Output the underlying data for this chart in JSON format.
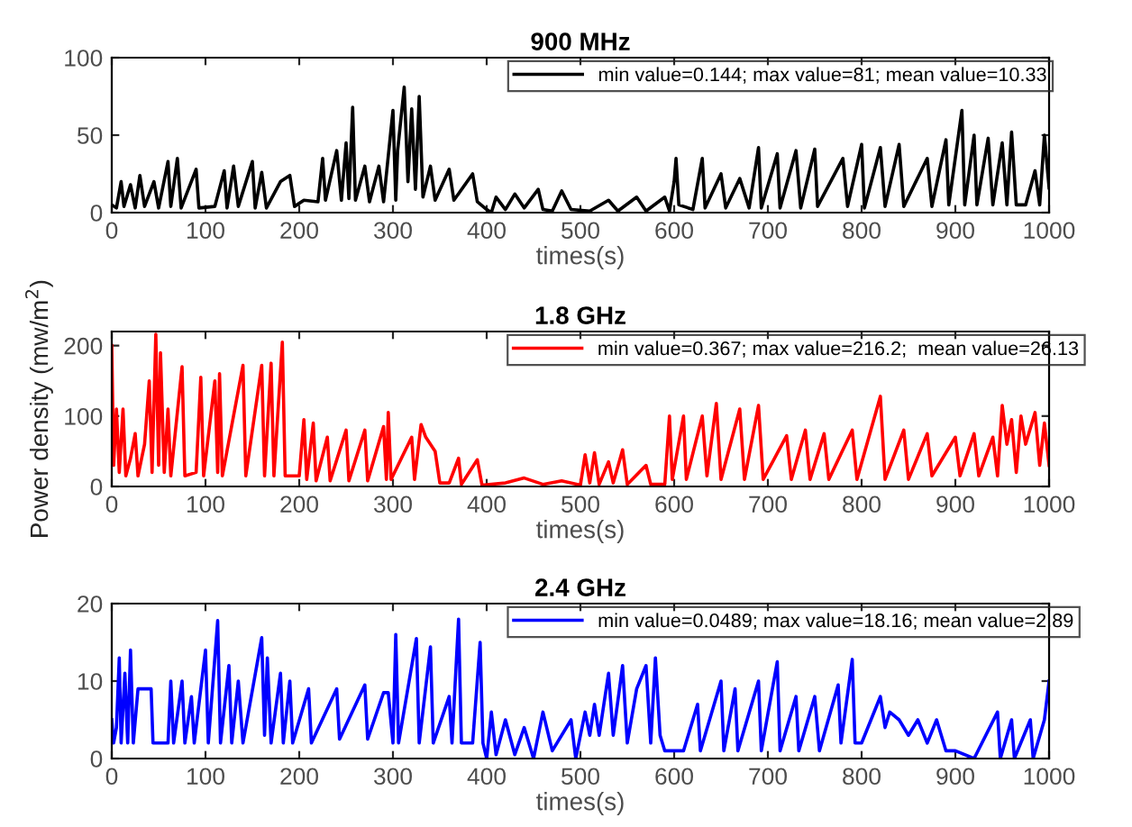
{
  "chart_data": [
    {
      "type": "line",
      "title": "900 MHz",
      "xlabel": "times(s)",
      "xlim": [
        0,
        1000
      ],
      "xticks": [
        0,
        100,
        200,
        300,
        400,
        500,
        600,
        700,
        800,
        900,
        1000
      ],
      "ylim": [
        0,
        100
      ],
      "yticks": [
        0,
        50,
        100
      ],
      "legend": "top right",
      "grid": false,
      "series": [
        {
          "name": "min value=0.144; max value=81; mean value=10.33",
          "color": "#000000",
          "x": [
            0,
            5,
            10,
            13,
            20,
            25,
            30,
            35,
            45,
            50,
            60,
            63,
            70,
            74,
            90,
            93,
            110,
            120,
            123,
            130,
            135,
            150,
            153,
            160,
            165,
            180,
            190,
            195,
            205,
            220,
            225,
            228,
            240,
            245,
            250,
            253,
            257,
            260,
            270,
            275,
            285,
            290,
            300,
            303,
            305,
            312,
            316,
            320,
            324,
            328,
            332,
            340,
            345,
            360,
            365,
            385,
            390,
            400,
            405,
            410,
            420,
            430,
            440,
            455,
            460,
            470,
            480,
            490,
            510,
            530,
            540,
            560,
            570,
            590,
            595,
            600,
            602,
            605,
            620,
            630,
            633,
            650,
            655,
            670,
            680,
            690,
            693,
            710,
            713,
            730,
            735,
            750,
            753,
            780,
            785,
            800,
            803,
            820,
            825,
            840,
            845,
            870,
            875,
            890,
            893,
            907,
            910,
            920,
            923,
            935,
            940,
            950,
            955,
            960,
            965,
            975,
            985,
            990,
            995,
            1000
          ],
          "values": [
            5,
            3,
            20,
            4,
            18,
            3,
            24,
            4,
            20,
            3,
            33,
            4,
            35,
            3,
            28,
            3,
            4,
            27,
            3,
            30,
            4,
            33,
            3,
            26,
            3,
            20,
            24,
            4,
            8,
            7,
            35,
            8,
            40,
            8,
            45,
            9,
            68,
            8,
            30,
            7,
            30,
            7,
            66,
            8,
            40,
            81,
            20,
            67,
            15,
            75,
            10,
            30,
            8,
            28,
            8,
            25,
            7,
            2,
            0,
            10,
            2,
            12,
            3,
            15,
            2,
            1,
            14,
            2,
            1,
            8,
            1,
            10,
            1,
            10,
            1,
            20,
            35,
            5,
            2,
            35,
            3,
            25,
            3,
            22,
            3,
            42,
            3,
            38,
            3,
            40,
            3,
            41,
            4,
            35,
            4,
            44,
            3,
            42,
            4,
            44,
            4,
            35,
            4,
            47,
            5,
            66,
            5,
            50,
            5,
            48,
            5,
            45,
            5,
            52,
            5,
            5,
            27,
            5,
            50,
            16
          ]
        }
      ]
    },
    {
      "type": "line",
      "title": "1.8 GHz",
      "xlabel": "times(s)",
      "ylabel": "Power density (mw/m$^{2}$)",
      "xlim": [
        0,
        1000
      ],
      "xticks": [
        0,
        100,
        200,
        300,
        400,
        500,
        600,
        700,
        800,
        900,
        1000
      ],
      "ylim": [
        0,
        220
      ],
      "yticks": [
        0,
        100,
        200
      ],
      "legend": "top right",
      "grid": false,
      "series": [
        {
          "name": "min value=0.367; max value=216.2;  mean value=26.13",
          "color": "#ff0000",
          "x": [
            0,
            2,
            5,
            8,
            12,
            15,
            20,
            25,
            28,
            35,
            40,
            43,
            47,
            50,
            52,
            56,
            60,
            63,
            75,
            78,
            90,
            95,
            98,
            110,
            113,
            115,
            118,
            140,
            143,
            160,
            163,
            170,
            173,
            182,
            185,
            200,
            205,
            208,
            215,
            218,
            230,
            233,
            250,
            253,
            270,
            273,
            290,
            293,
            295,
            298,
            320,
            323,
            330,
            335,
            345,
            350,
            360,
            370,
            373,
            390,
            395,
            420,
            440,
            460,
            480,
            500,
            505,
            510,
            515,
            520,
            530,
            535,
            545,
            550,
            570,
            575,
            590,
            595,
            598,
            610,
            613,
            630,
            635,
            645,
            650,
            670,
            675,
            690,
            695,
            720,
            725,
            740,
            745,
            760,
            765,
            790,
            795,
            820,
            825,
            845,
            850,
            870,
            875,
            900,
            905,
            920,
            925,
            940,
            945,
            950,
            955,
            960,
            965,
            970,
            975,
            985,
            990,
            995,
            1000
          ],
          "values": [
            200,
            30,
            110,
            20,
            110,
            15,
            40,
            75,
            15,
            60,
            150,
            20,
            216,
            30,
            190,
            20,
            110,
            15,
            170,
            15,
            20,
            155,
            15,
            150,
            20,
            160,
            15,
            172,
            15,
            172,
            15,
            175,
            15,
            205,
            15,
            15,
            95,
            10,
            90,
            8,
            70,
            8,
            80,
            8,
            80,
            8,
            85,
            10,
            105,
            10,
            70,
            10,
            88,
            70,
            50,
            5,
            5,
            40,
            3,
            38,
            2,
            5,
            12,
            3,
            8,
            2,
            45,
            5,
            48,
            3,
            35,
            5,
            52,
            3,
            30,
            3,
            3,
            100,
            10,
            100,
            10,
            100,
            15,
            118,
            10,
            110,
            10,
            115,
            10,
            72,
            10,
            80,
            10,
            75,
            10,
            80,
            10,
            128,
            10,
            80,
            10,
            75,
            15,
            70,
            15,
            75,
            15,
            70,
            15,
            115,
            60,
            95,
            20,
            100,
            60,
            105,
            30,
            90,
            30
          ]
        }
      ]
    },
    {
      "type": "line",
      "title": "2.4 GHz",
      "xlabel": "times(s)",
      "xlim": [
        0,
        1000
      ],
      "xticks": [
        0,
        100,
        200,
        300,
        400,
        500,
        600,
        700,
        800,
        900,
        1000
      ],
      "ylim": [
        0,
        20
      ],
      "yticks": [
        0,
        10,
        20
      ],
      "legend": "top right",
      "grid": false,
      "series": [
        {
          "name": "min value=0.0489; max value=18.16; mean value=2.89",
          "color": "#0000ff",
          "x": [
            0,
            2,
            5,
            8,
            10,
            14,
            17,
            20,
            23,
            28,
            35,
            42,
            44,
            60,
            63,
            66,
            75,
            78,
            85,
            88,
            100,
            103,
            113,
            116,
            125,
            128,
            135,
            140,
            160,
            163,
            166,
            170,
            180,
            183,
            190,
            193,
            210,
            213,
            240,
            243,
            270,
            273,
            290,
            295,
            300,
            303,
            306,
            325,
            328,
            340,
            343,
            360,
            363,
            370,
            373,
            385,
            393,
            396,
            400,
            405,
            410,
            420,
            430,
            440,
            450,
            460,
            470,
            490,
            495,
            505,
            510,
            515,
            520,
            530,
            535,
            545,
            550,
            560,
            570,
            575,
            580,
            585,
            590,
            610,
            625,
            628,
            650,
            653,
            665,
            668,
            690,
            693,
            710,
            713,
            730,
            733,
            750,
            755,
            775,
            778,
            790,
            793,
            800,
            810,
            820,
            825,
            830,
            840,
            850,
            860,
            870,
            880,
            890,
            900,
            920,
            945,
            948,
            960,
            963,
            980,
            983,
            995,
            1000
          ],
          "values": [
            5,
            2,
            4,
            13,
            2,
            11,
            2,
            14,
            2,
            9,
            9,
            9,
            2,
            2,
            10,
            2,
            10,
            2,
            8,
            2,
            14,
            2,
            17.8,
            2,
            12,
            2,
            10,
            2,
            15.6,
            3,
            13,
            2,
            11,
            2,
            10,
            2,
            9,
            2,
            9,
            2.5,
            9.5,
            2.5,
            8.5,
            8.5,
            2,
            16,
            2,
            15.5,
            2,
            14.4,
            2,
            8,
            2,
            18,
            2,
            2,
            15,
            2,
            0,
            6,
            0.5,
            5,
            0.5,
            4,
            0,
            6,
            1,
            5,
            0,
            6,
            3,
            7,
            3,
            11,
            3,
            12,
            2,
            9,
            12,
            2,
            13,
            3,
            1,
            1,
            7,
            1,
            10,
            1,
            9,
            1,
            10,
            1,
            12.5,
            1,
            8,
            1,
            8,
            1,
            9.5,
            2,
            12.8,
            2,
            2,
            5,
            8,
            4,
            6,
            5,
            3,
            5,
            2,
            5,
            1,
            1,
            0,
            6,
            0,
            5,
            0,
            5,
            0,
            5,
            10
          ]
        }
      ]
    }
  ]
}
